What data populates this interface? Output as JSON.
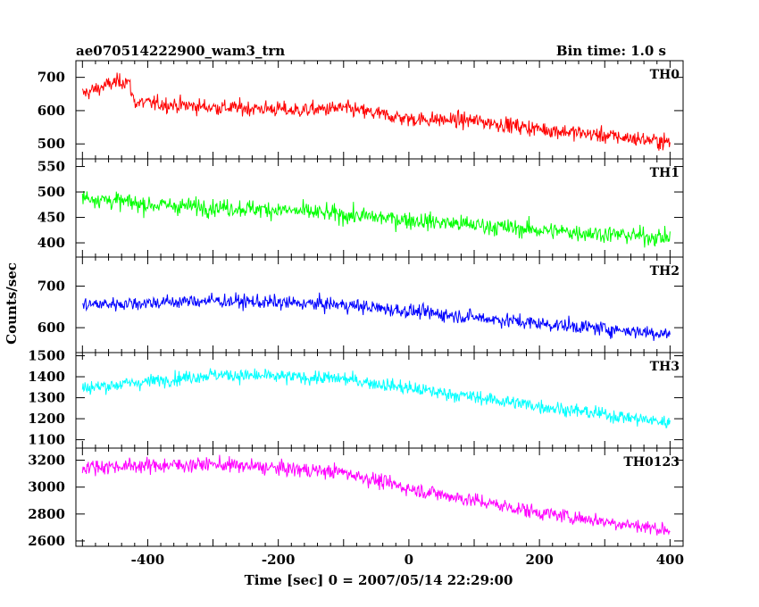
{
  "chart_data": {
    "type": "line",
    "title": "ae070514222900_wam3_trn",
    "bin_label": "Bin time: 1.0 s",
    "xlabel": "Time [sec] 0 = 2007/05/14 22:29:00",
    "ylabel": "Counts/sec",
    "xlim": [
      -510,
      420
    ],
    "xticks": [
      -400,
      -200,
      0,
      200,
      400
    ],
    "panels": [
      {
        "name": "TH0",
        "color": "#ff0000",
        "ylim": [
          455,
          750
        ],
        "yticks": [
          500,
          600,
          700
        ],
        "trend": [
          [
            -500,
            650
          ],
          [
            -450,
            685
          ],
          [
            -430,
            690
          ],
          [
            -420,
            625
          ],
          [
            -300,
            610
          ],
          [
            -200,
            605
          ],
          [
            -180,
            600
          ],
          [
            -100,
            607
          ],
          [
            0,
            575
          ],
          [
            100,
            570
          ],
          [
            200,
            545
          ],
          [
            300,
            525
          ],
          [
            400,
            505
          ]
        ],
        "noise": 30
      },
      {
        "name": "TH1",
        "color": "#00ff00",
        "ylim": [
          372,
          565
        ],
        "yticks": [
          400,
          450,
          500,
          550
        ],
        "trend": [
          [
            -500,
            490
          ],
          [
            -400,
            475
          ],
          [
            -200,
            465
          ],
          [
            0,
            445
          ],
          [
            200,
            425
          ],
          [
            400,
            410
          ]
        ],
        "noise": 22
      },
      {
        "name": "TH2",
        "color": "#0000ff",
        "ylim": [
          540,
          770
        ],
        "yticks": [
          600,
          700
        ],
        "trend": [
          [
            -500,
            655
          ],
          [
            -300,
            665
          ],
          [
            -100,
            655
          ],
          [
            0,
            640
          ],
          [
            200,
            610
          ],
          [
            400,
            585
          ]
        ],
        "noise": 22
      },
      {
        "name": "TH3",
        "color": "#00ffff",
        "ylim": [
          1060,
          1515
        ],
        "yticks": [
          1100,
          1200,
          1300,
          1400,
          1500
        ],
        "trend": [
          [
            -500,
            1345
          ],
          [
            -300,
            1410
          ],
          [
            -100,
            1390
          ],
          [
            0,
            1345
          ],
          [
            200,
            1260
          ],
          [
            400,
            1180
          ]
        ],
        "noise": 42
      },
      {
        "name": "TH0123",
        "color": "#ff00ff",
        "ylim": [
          2560,
          3290
        ],
        "yticks": [
          2600,
          2800,
          3000,
          3200
        ],
        "trend": [
          [
            -500,
            3150
          ],
          [
            -300,
            3170
          ],
          [
            -100,
            3110
          ],
          [
            0,
            2990
          ],
          [
            200,
            2810
          ],
          [
            400,
            2680
          ]
        ],
        "noise": 70
      }
    ]
  }
}
